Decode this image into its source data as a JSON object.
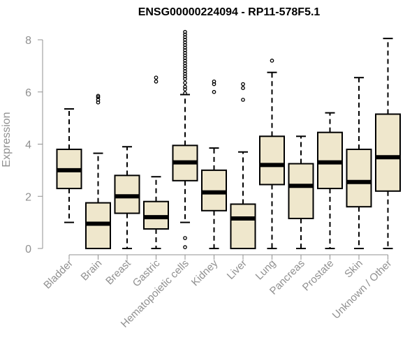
{
  "chart_data": {
    "type": "boxplot",
    "title": "ENSG00000224094 - RP11-578F5.1",
    "xlabel": "",
    "ylabel": "Expression",
    "ylim": [
      0,
      8
    ],
    "yticks": [
      0,
      2,
      4,
      6,
      8
    ],
    "box_color": "#EFE7CC",
    "categories": [
      "Bladder",
      "Brain",
      "Breast",
      "Gastric",
      "Hematopoietic cells",
      "Kidney",
      "Liver",
      "Lung",
      "Pancreas",
      "Prostate",
      "Skin",
      "Unknown / Other"
    ],
    "boxes": [
      {
        "whislo": 1.0,
        "q1": 2.3,
        "med": 3.0,
        "q3": 3.8,
        "whishi": 5.35,
        "fliers": []
      },
      {
        "whislo": 0.0,
        "q1": 0.0,
        "med": 0.95,
        "q3": 1.75,
        "whishi": 3.65,
        "fliers": [
          5.6,
          5.7,
          5.8,
          5.85
        ]
      },
      {
        "whislo": 0.0,
        "q1": 1.35,
        "med": 2.0,
        "q3": 2.8,
        "whishi": 3.9,
        "fliers": []
      },
      {
        "whislo": 0.0,
        "q1": 0.75,
        "med": 1.2,
        "q3": 1.8,
        "whishi": 2.75,
        "fliers": [
          6.4,
          6.55
        ]
      },
      {
        "whislo": 1.0,
        "q1": 2.6,
        "med": 3.3,
        "q3": 3.95,
        "whishi": 5.9,
        "fliers": [
          0.05,
          0.4,
          5.95,
          6.1,
          6.2,
          6.35,
          6.5,
          6.6,
          6.7,
          6.8,
          6.9,
          7.0,
          7.1,
          7.2,
          7.3,
          7.4,
          7.5,
          7.6,
          7.7,
          7.8,
          7.9,
          8.0,
          8.1,
          8.2,
          8.3
        ]
      },
      {
        "whislo": 0.0,
        "q1": 1.45,
        "med": 2.15,
        "q3": 3.0,
        "whishi": 3.85,
        "fliers": [
          6.0,
          6.3,
          6.4
        ]
      },
      {
        "whislo": 0.0,
        "q1": 0.0,
        "med": 1.15,
        "q3": 1.7,
        "whishi": 3.7,
        "fliers": [
          5.7,
          6.15,
          6.3
        ]
      },
      {
        "whislo": 0.0,
        "q1": 2.45,
        "med": 3.2,
        "q3": 4.3,
        "whishi": 6.75,
        "fliers": [
          7.2
        ]
      },
      {
        "whislo": 0.0,
        "q1": 1.15,
        "med": 2.4,
        "q3": 3.25,
        "whishi": 4.3,
        "fliers": []
      },
      {
        "whislo": 0.0,
        "q1": 2.3,
        "med": 3.3,
        "q3": 4.45,
        "whishi": 5.2,
        "fliers": []
      },
      {
        "whislo": 0.0,
        "q1": 1.6,
        "med": 2.55,
        "q3": 3.8,
        "whishi": 6.55,
        "fliers": []
      },
      {
        "whislo": 0.0,
        "q1": 2.2,
        "med": 3.5,
        "q3": 5.15,
        "whishi": 8.05,
        "fliers": []
      }
    ]
  }
}
